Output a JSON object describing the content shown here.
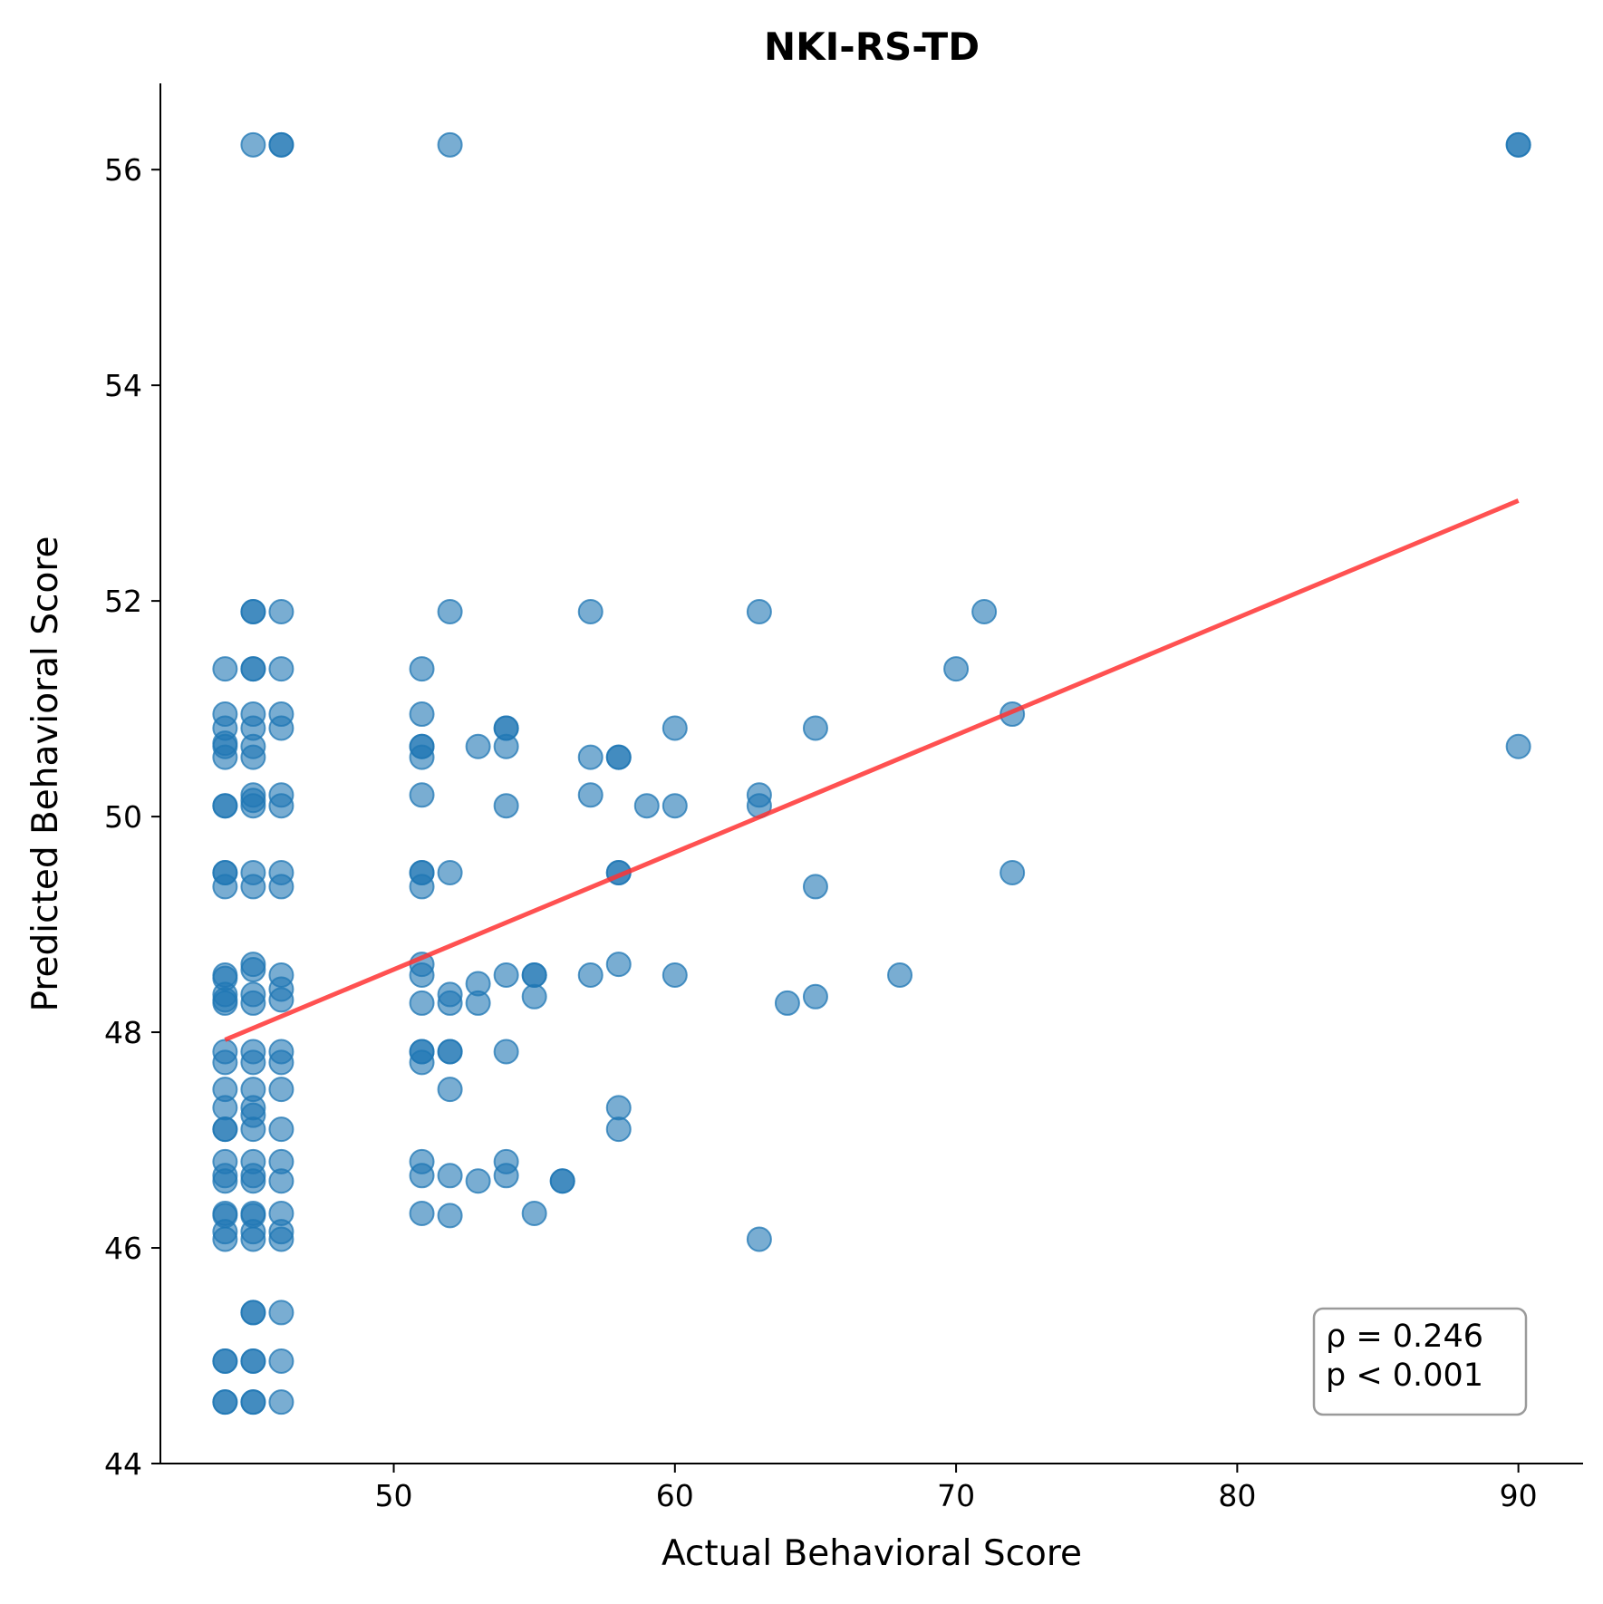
{
  "chart_data": {
    "type": "scatter",
    "title": "NKI-RS-TD",
    "xlabel": "Actual Behavioral Score",
    "ylabel": "Predicted Behavioral Score",
    "xlim": [
      41.7,
      92.3
    ],
    "ylim": [
      44.0,
      56.8
    ],
    "xticks": [
      50,
      60,
      70,
      80,
      90
    ],
    "yticks": [
      44,
      46,
      48,
      50,
      52,
      54,
      56
    ],
    "grid": false,
    "point_color": "#1f77b4",
    "point_opacity": 0.6,
    "regression_line": {
      "color": "#ff3333",
      "x": [
        44,
        90
      ],
      "y": [
        47.93,
        52.93
      ]
    },
    "annotation": {
      "lines": [
        "ρ = 0.246",
        "p < 0.001"
      ],
      "placement": "bottom-right"
    },
    "points": [
      [
        44,
        51.37
      ],
      [
        44,
        50.95
      ],
      [
        44,
        50.82
      ],
      [
        44,
        50.68
      ],
      [
        44,
        50.65
      ],
      [
        44,
        50.55
      ],
      [
        44,
        50.1
      ],
      [
        44,
        50.1
      ],
      [
        44,
        49.48
      ],
      [
        44,
        49.48
      ],
      [
        44,
        49.35
      ],
      [
        44,
        48.53
      ],
      [
        44,
        48.5
      ],
      [
        44,
        48.35
      ],
      [
        44,
        48.3
      ],
      [
        44,
        48.27
      ],
      [
        44,
        47.82
      ],
      [
        44,
        47.72
      ],
      [
        44,
        47.47
      ],
      [
        44,
        47.3
      ],
      [
        44,
        47.1
      ],
      [
        44,
        47.1
      ],
      [
        44,
        46.8
      ],
      [
        44,
        46.67
      ],
      [
        44,
        46.62
      ],
      [
        44,
        46.32
      ],
      [
        44,
        46.3
      ],
      [
        44,
        46.15
      ],
      [
        44,
        46.08
      ],
      [
        44,
        44.95
      ],
      [
        44,
        44.95
      ],
      [
        44,
        44.57
      ],
      [
        44,
        44.57
      ],
      [
        45,
        56.23
      ],
      [
        45,
        51.9
      ],
      [
        45,
        51.9
      ],
      [
        45,
        51.37
      ],
      [
        45,
        51.37
      ],
      [
        45,
        50.95
      ],
      [
        45,
        50.82
      ],
      [
        45,
        50.65
      ],
      [
        45,
        50.55
      ],
      [
        45,
        50.2
      ],
      [
        45,
        50.1
      ],
      [
        45,
        50.15
      ],
      [
        45,
        49.48
      ],
      [
        45,
        49.35
      ],
      [
        45,
        48.63
      ],
      [
        45,
        48.58
      ],
      [
        45,
        48.35
      ],
      [
        45,
        48.27
      ],
      [
        45,
        47.82
      ],
      [
        45,
        47.72
      ],
      [
        45,
        47.47
      ],
      [
        45,
        47.3
      ],
      [
        45,
        47.23
      ],
      [
        45,
        47.1
      ],
      [
        45,
        46.8
      ],
      [
        45,
        46.67
      ],
      [
        45,
        46.62
      ],
      [
        45,
        46.32
      ],
      [
        45,
        46.3
      ],
      [
        45,
        46.15
      ],
      [
        45,
        46.08
      ],
      [
        45,
        45.4
      ],
      [
        45,
        45.4
      ],
      [
        45,
        44.95
      ],
      [
        45,
        44.95
      ],
      [
        45,
        44.57
      ],
      [
        45,
        44.57
      ],
      [
        46,
        56.23
      ],
      [
        46,
        56.23
      ],
      [
        46,
        51.9
      ],
      [
        46,
        51.37
      ],
      [
        46,
        50.95
      ],
      [
        46,
        50.82
      ],
      [
        46,
        50.2
      ],
      [
        46,
        50.1
      ],
      [
        46,
        49.48
      ],
      [
        46,
        49.35
      ],
      [
        46,
        48.53
      ],
      [
        46,
        48.4
      ],
      [
        46,
        48.3
      ],
      [
        46,
        47.82
      ],
      [
        46,
        47.72
      ],
      [
        46,
        47.47
      ],
      [
        46,
        47.1
      ],
      [
        46,
        46.8
      ],
      [
        46,
        46.62
      ],
      [
        46,
        46.32
      ],
      [
        46,
        46.15
      ],
      [
        46,
        46.08
      ],
      [
        46,
        45.4
      ],
      [
        46,
        44.95
      ],
      [
        46,
        44.57
      ],
      [
        51,
        51.37
      ],
      [
        51,
        50.95
      ],
      [
        51,
        50.65
      ],
      [
        51,
        50.65
      ],
      [
        51,
        50.55
      ],
      [
        51,
        50.2
      ],
      [
        51,
        49.48
      ],
      [
        51,
        49.48
      ],
      [
        51,
        49.35
      ],
      [
        51,
        48.63
      ],
      [
        51,
        48.53
      ],
      [
        51,
        48.27
      ],
      [
        51,
        47.82
      ],
      [
        51,
        47.82
      ],
      [
        51,
        47.72
      ],
      [
        51,
        46.8
      ],
      [
        51,
        46.67
      ],
      [
        51,
        46.32
      ],
      [
        52,
        56.23
      ],
      [
        52,
        51.9
      ],
      [
        52,
        49.48
      ],
      [
        52,
        48.35
      ],
      [
        52,
        48.27
      ],
      [
        52,
        47.82
      ],
      [
        52,
        47.82
      ],
      [
        52,
        47.47
      ],
      [
        52,
        46.67
      ],
      [
        52,
        46.3
      ],
      [
        53,
        50.65
      ],
      [
        53,
        48.45
      ],
      [
        53,
        48.27
      ],
      [
        53,
        46.62
      ],
      [
        54,
        50.82
      ],
      [
        54,
        50.82
      ],
      [
        54,
        50.65
      ],
      [
        54,
        50.1
      ],
      [
        54,
        48.53
      ],
      [
        54,
        47.82
      ],
      [
        54,
        46.8
      ],
      [
        54,
        46.67
      ],
      [
        55,
        48.53
      ],
      [
        55,
        48.53
      ],
      [
        55,
        48.33
      ],
      [
        55,
        46.32
      ],
      [
        56,
        46.62
      ],
      [
        56,
        46.62
      ],
      [
        57,
        51.9
      ],
      [
        57,
        50.55
      ],
      [
        57,
        50.2
      ],
      [
        57,
        48.53
      ],
      [
        58,
        50.55
      ],
      [
        58,
        50.55
      ],
      [
        58,
        49.48
      ],
      [
        58,
        49.48
      ],
      [
        58,
        48.63
      ],
      [
        58,
        47.3
      ],
      [
        58,
        47.1
      ],
      [
        59,
        50.1
      ],
      [
        60,
        50.82
      ],
      [
        60,
        50.1
      ],
      [
        60,
        48.53
      ],
      [
        63,
        51.9
      ],
      [
        63,
        50.2
      ],
      [
        63,
        50.1
      ],
      [
        63,
        46.08
      ],
      [
        64,
        48.27
      ],
      [
        65,
        50.82
      ],
      [
        65,
        49.35
      ],
      [
        65,
        48.33
      ],
      [
        68,
        48.53
      ],
      [
        70,
        51.37
      ],
      [
        71,
        51.9
      ],
      [
        72,
        50.95
      ],
      [
        72,
        49.48
      ],
      [
        90,
        56.23
      ],
      [
        90,
        56.23
      ],
      [
        90,
        50.65
      ]
    ]
  }
}
